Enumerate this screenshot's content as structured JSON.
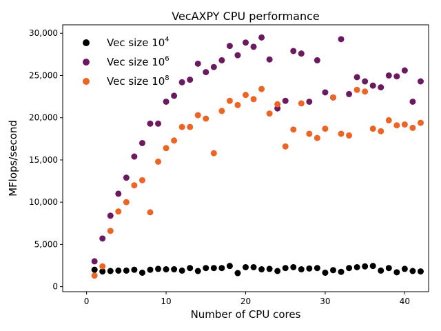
{
  "chart_data": {
    "type": "scatter",
    "title": "VecAXPY CPU performance",
    "xlabel": "Number of CPU cores",
    "ylabel": "MFlops/second",
    "xlim": [
      -3,
      43
    ],
    "ylim": [
      -600,
      31000
    ],
    "x_ticks": [
      0,
      10,
      20,
      30,
      40
    ],
    "x_tick_labels": [
      "0",
      "10",
      "20",
      "30",
      "40"
    ],
    "y_ticks": [
      0,
      5000,
      10000,
      15000,
      20000,
      25000,
      30000
    ],
    "y_tick_labels": [
      "0",
      "5,000",
      "10,000",
      "15,000",
      "20,000",
      "25,000",
      "30,000"
    ],
    "grid": false,
    "legend_position": "top-left",
    "x": [
      1,
      2,
      3,
      4,
      5,
      6,
      7,
      8,
      9,
      10,
      11,
      12,
      13,
      14,
      15,
      16,
      17,
      18,
      19,
      20,
      21,
      22,
      23,
      24,
      25,
      26,
      27,
      28,
      29,
      30,
      31,
      32,
      33,
      34,
      35,
      36,
      37,
      38,
      39,
      40,
      41,
      42
    ],
    "series": [
      {
        "name": "Vec size 10",
        "exponent": "4",
        "color": "#000000",
        "values": [
          2000,
          1800,
          1850,
          1900,
          1900,
          2000,
          1650,
          2000,
          2100,
          2050,
          2050,
          1900,
          2200,
          1850,
          2200,
          2200,
          2200,
          2450,
          1600,
          2300,
          2300,
          2050,
          2100,
          1850,
          2200,
          2300,
          2050,
          2150,
          2200,
          1650,
          1950,
          1750,
          2200,
          2300,
          2400,
          2450,
          1900,
          2200,
          1700,
          2100,
          1850,
          1800
        ]
      },
      {
        "name": "Vec size 10",
        "exponent": "6",
        "color": "#6b1a5f",
        "values": [
          3000,
          5700,
          8400,
          11000,
          12900,
          15400,
          17000,
          19300,
          19300,
          21900,
          22600,
          24200,
          24500,
          26400,
          25400,
          26000,
          26800,
          28500,
          27400,
          28900,
          28400,
          29500,
          26900,
          21100,
          22000,
          27900,
          27600,
          21900,
          26800,
          23000,
          22400,
          29300,
          22800,
          24800,
          24300,
          23800,
          23600,
          25000,
          24900,
          25600,
          21900,
          24300
        ]
      },
      {
        "name": "Vec size 10",
        "exponent": "8",
        "color": "#ec6525",
        "values": [
          1300,
          2400,
          6600,
          8900,
          10000,
          12000,
          12600,
          8800,
          14800,
          16400,
          17300,
          18900,
          18900,
          20300,
          19900,
          15800,
          20800,
          22000,
          21500,
          22700,
          22200,
          23400,
          20500,
          21600,
          16600,
          18600,
          21700,
          18100,
          17600,
          18700,
          22400,
          18100,
          17900,
          23300,
          23100,
          18700,
          18400,
          19700,
          19100,
          19200,
          18800,
          19400
        ]
      }
    ]
  }
}
